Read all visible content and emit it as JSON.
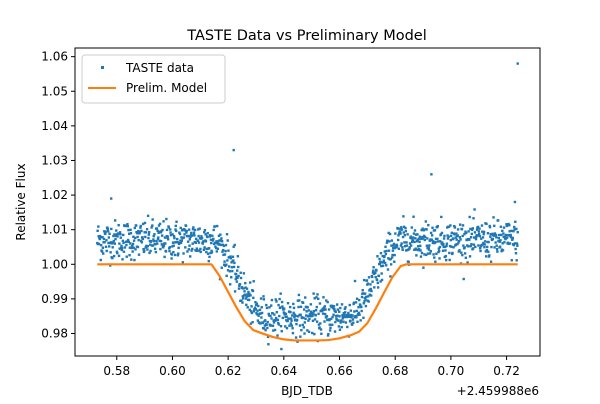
{
  "chart_data": {
    "type": "scatter",
    "title": "TASTE Data vs Preliminary Model",
    "xlabel": "BJD_TDB",
    "ylabel": "Relative Flux",
    "x_offset_label": "+2.459988e6",
    "xlim": [
      0.565,
      0.732
    ],
    "ylim": [
      0.9735,
      1.0625
    ],
    "xticks": [
      0.58,
      0.6,
      0.62,
      0.64,
      0.66,
      0.68,
      0.7,
      0.72
    ],
    "xtick_labels": [
      "0.58",
      "0.60",
      "0.62",
      "0.64",
      "0.66",
      "0.68",
      "0.70",
      "0.72"
    ],
    "yticks": [
      0.98,
      0.99,
      1.0,
      1.01,
      1.02,
      1.03,
      1.04,
      1.05,
      1.06
    ],
    "ytick_labels": [
      "0.98",
      "0.99",
      "1.00",
      "1.01",
      "1.02",
      "1.03",
      "1.04",
      "1.05",
      "1.06"
    ],
    "grid": false,
    "legend": {
      "placement": "top-left",
      "entries": [
        "TASTE data",
        "Prelim. Model"
      ]
    },
    "series": [
      {
        "name": "TASTE data",
        "kind": "scatter",
        "color": "#1f77b4",
        "x_range": [
          0.573,
          0.724
        ],
        "baseline": 1.007,
        "transit_depth_level": 0.985,
        "ingress": [
          0.614,
          0.633
        ],
        "egress": [
          0.663,
          0.683
        ],
        "scatter_sigma": 0.0028,
        "num_points": 1200,
        "outliers": [
          {
            "x": 0.622,
            "y": 1.033
          },
          {
            "x": 0.693,
            "y": 1.026
          },
          {
            "x": 0.724,
            "y": 1.058
          },
          {
            "x": 0.723,
            "y": 1.018
          },
          {
            "x": 0.578,
            "y": 1.019
          }
        ]
      },
      {
        "name": "Prelim. Model",
        "kind": "line",
        "color": "#ff7f0e",
        "points": [
          [
            0.573,
            1.0
          ],
          [
            0.6,
            1.0
          ],
          [
            0.614,
            1.0
          ],
          [
            0.617,
            0.9965
          ],
          [
            0.62,
            0.992
          ],
          [
            0.623,
            0.9875
          ],
          [
            0.626,
            0.9835
          ],
          [
            0.629,
            0.981
          ],
          [
            0.632,
            0.9801
          ],
          [
            0.636,
            0.979
          ],
          [
            0.64,
            0.9783
          ],
          [
            0.644,
            0.978
          ],
          [
            0.648,
            0.978
          ],
          [
            0.652,
            0.978
          ],
          [
            0.656,
            0.9781
          ],
          [
            0.66,
            0.9786
          ],
          [
            0.664,
            0.9795
          ],
          [
            0.667,
            0.9805
          ],
          [
            0.67,
            0.983
          ],
          [
            0.673,
            0.9872
          ],
          [
            0.676,
            0.9918
          ],
          [
            0.679,
            0.9963
          ],
          [
            0.682,
            0.9995
          ],
          [
            0.684,
            1.0
          ],
          [
            0.7,
            1.0
          ],
          [
            0.724,
            1.0
          ]
        ]
      }
    ]
  }
}
